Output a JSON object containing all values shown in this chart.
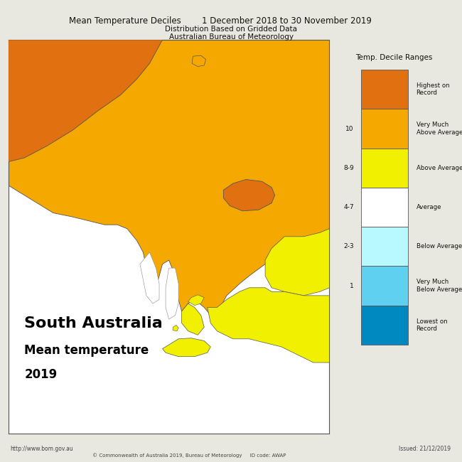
{
  "title_left": "Mean Temperature Deciles",
  "title_right": "1 December 2018 to 30 November 2019",
  "subtitle1": "Distribution Based on Gridded Data",
  "subtitle2": "Australian Bureau of Meteorology",
  "map_label1": "South Australia",
  "map_label2": "Mean temperature",
  "map_label3": "2019",
  "footer_left": "http://www.bom.gov.au",
  "footer_center": "© Commonwealth of Australia 2019, Bureau of Meteorology     ID code: AWAP",
  "footer_right": "Issued: 21/12/2019",
  "legend_title": "Temp. Decile Ranges",
  "legend_items": [
    {
      "label": "Highest on\nRecord",
      "color": "#E07010"
    },
    {
      "label": "Very Much\nAbove Average",
      "color": "#F5A800"
    },
    {
      "label": "Above Average",
      "color": "#F0F000"
    },
    {
      "label": "Average",
      "color": "#FFFFFF"
    },
    {
      "label": "Below Average",
      "color": "#B8F8FF"
    },
    {
      "label": "Very Much\nBelow Average",
      "color": "#60D0F0"
    },
    {
      "label": "Lowest on\nRecord",
      "color": "#0088C0"
    }
  ],
  "legend_ticks": [
    "",
    "10",
    "8-9",
    "4-7",
    "2-3",
    "1",
    ""
  ],
  "background_color": "#E8E8E0",
  "map_bg": "#FFFFFF",
  "border_color": "#888888",
  "colors": {
    "highest": "#E07010",
    "very_much_above": "#F5A800",
    "above": "#F0F000",
    "average": "#FFFFFF",
    "below": "#B8F8FF",
    "very_much_below": "#60D0F0",
    "lowest": "#0088C0",
    "water": "#FFFFFF"
  }
}
